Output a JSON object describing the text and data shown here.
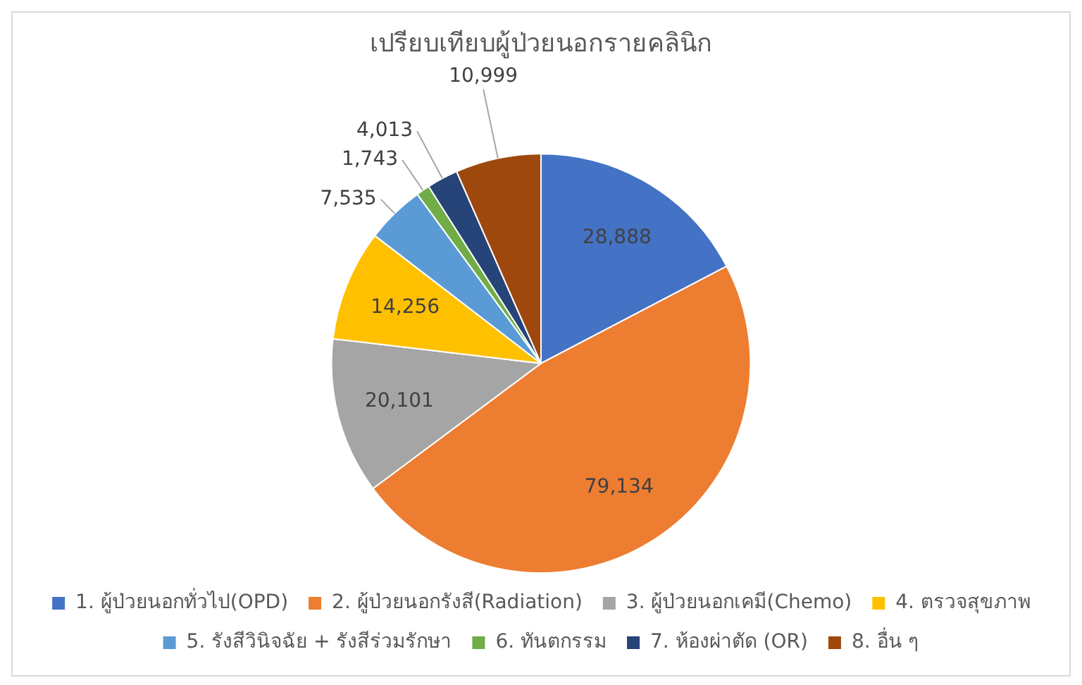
{
  "chart_data": {
    "type": "pie",
    "title": "เปรียบเทียบผู้ป่วยนอกรายคลินิก",
    "categories": [
      "1. ผู้ป่วยนอกทั่วไป(OPD)",
      "2. ผู้ป่วยนอกรังสี(Radiation)",
      "3. ผู้ป่วยนอกเคมี(Chemo)",
      "4. ตรวจสุขภาพ",
      "5. รังสีวินิจฉัย + รังสีร่วมรักษา",
      "6. ทันตกรรม",
      "7. ห้องผ่าตัด (OR)",
      "8. อื่น ๆ"
    ],
    "values": [
      28888,
      79134,
      20101,
      14256,
      7535,
      1743,
      4013,
      10999
    ],
    "colors": [
      "#4472c4",
      "#ed7d31",
      "#a5a5a5",
      "#ffc000",
      "#5b9bd5",
      "#70ad47",
      "#264478",
      "#9e480e"
    ],
    "value_labels": [
      "28,888",
      "79,134",
      "20,101",
      "14,256",
      "7,535",
      "1,743",
      "4,013",
      "10,999"
    ],
    "legend": "bottom"
  }
}
